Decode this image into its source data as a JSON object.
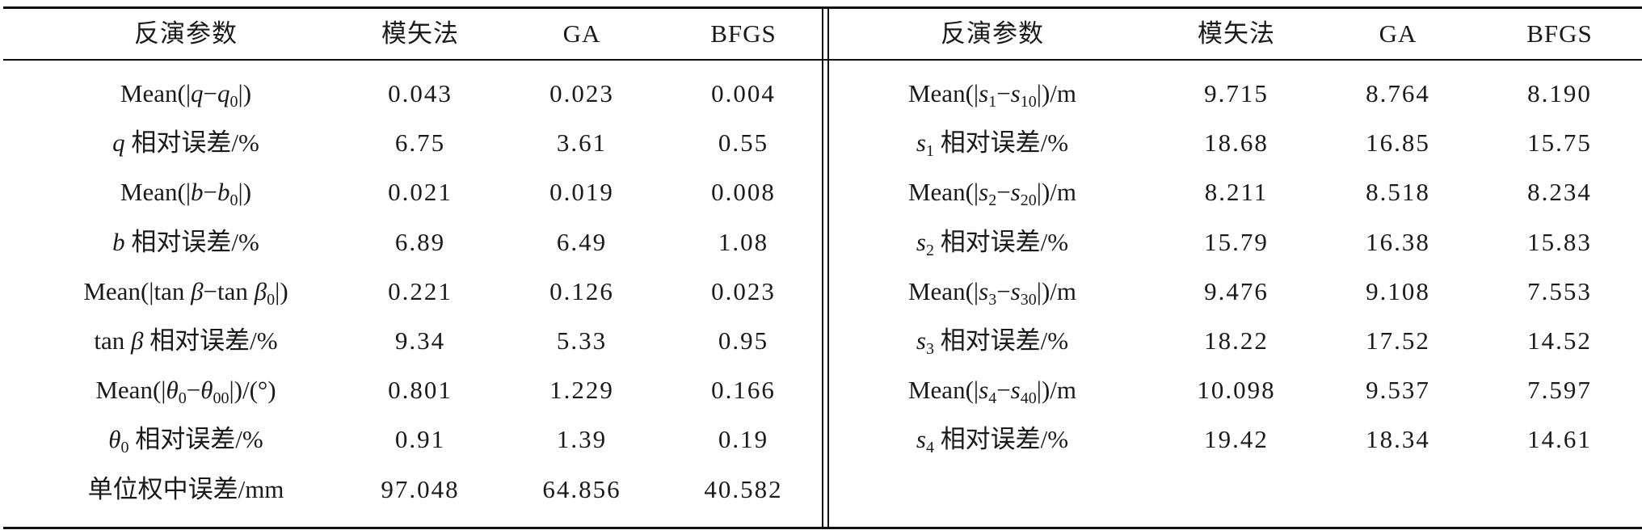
{
  "header": {
    "left": [
      "反演参数",
      "模矢法",
      "GA",
      "BFGS"
    ],
    "right": [
      "反演参数",
      "模矢法",
      "GA",
      "BFGS"
    ]
  },
  "left_rows": [
    {
      "param_html": "Mean(|<i>q</i>−<i>q</i><sub>0</sub>|)",
      "mv": "0.043",
      "ga": "0.023",
      "bfgs": "0.004"
    },
    {
      "param_html": "<i>q</i> 相对误差/%",
      "mv": "6.75",
      "ga": "3.61",
      "bfgs": "0.55"
    },
    {
      "param_html": "Mean(|<i>b</i>−<i>b</i><sub>0</sub>|)",
      "mv": "0.021",
      "ga": "0.019",
      "bfgs": "0.008"
    },
    {
      "param_html": "<i>b</i> 相对误差/%",
      "mv": "6.89",
      "ga": "6.49",
      "bfgs": "1.08"
    },
    {
      "param_html": "Mean(|tan <i>β</i>−tan <i>β</i><sub>0</sub>|)",
      "mv": "0.221",
      "ga": "0.126",
      "bfgs": "0.023"
    },
    {
      "param_html": "tan <i>β</i> 相对误差/%",
      "mv": "9.34",
      "ga": "5.33",
      "bfgs": "0.95"
    },
    {
      "param_html": "Mean(|<i>θ</i><sub>0</sub>−<i>θ</i><sub>00</sub>|)/(°)",
      "mv": "0.801",
      "ga": "1.229",
      "bfgs": "0.166"
    },
    {
      "param_html": "<i>θ</i><sub>0</sub> 相对误差/%",
      "mv": "0.91",
      "ga": "1.39",
      "bfgs": "0.19"
    },
    {
      "param_html": "单位权中误差/mm",
      "mv": "97.048",
      "ga": "64.856",
      "bfgs": "40.582"
    }
  ],
  "right_rows": [
    {
      "param_html": "Mean(|<i>s</i><sub>1</sub>−<i>s</i><sub>10</sub>|)/m",
      "mv": "9.715",
      "ga": "8.764",
      "bfgs": "8.190"
    },
    {
      "param_html": "<i>s</i><sub>1</sub> 相对误差/%",
      "mv": "18.68",
      "ga": "16.85",
      "bfgs": "15.75"
    },
    {
      "param_html": "Mean(|<i>s</i><sub>2</sub>−<i>s</i><sub>20</sub>|)/m",
      "mv": "8.211",
      "ga": "8.518",
      "bfgs": "8.234"
    },
    {
      "param_html": "<i>s</i><sub>2</sub> 相对误差/%",
      "mv": "15.79",
      "ga": "16.38",
      "bfgs": "15.83"
    },
    {
      "param_html": "Mean(|<i>s</i><sub>3</sub>−<i>s</i><sub>30</sub>|)/m",
      "mv": "9.476",
      "ga": "9.108",
      "bfgs": "7.553"
    },
    {
      "param_html": "<i>s</i><sub>3</sub> 相对误差/%",
      "mv": "18.22",
      "ga": "17.52",
      "bfgs": "14.52"
    },
    {
      "param_html": "Mean(|<i>s</i><sub>4</sub>−<i>s</i><sub>40</sub>|)/m",
      "mv": "10.098",
      "ga": "9.537",
      "bfgs": "7.597"
    },
    {
      "param_html": "<i>s</i><sub>4</sub> 相对误差/%",
      "mv": "19.42",
      "ga": "18.34",
      "bfgs": "14.61"
    }
  ]
}
